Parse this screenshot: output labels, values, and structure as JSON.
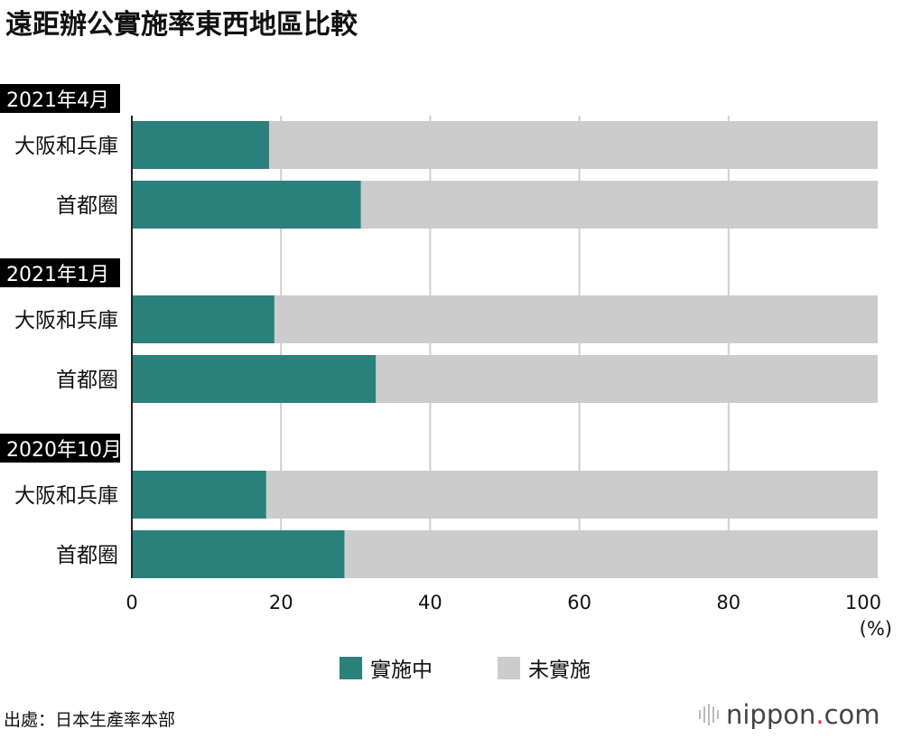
{
  "chart_data": {
    "type": "bar",
    "orientation": "horizontal",
    "stacked": true,
    "title": "遠距辦公實施率東西地區比較",
    "groups": [
      {
        "label": "2021年4月",
        "categories": [
          "大阪和兵庫",
          "首都圈"
        ],
        "implemented": [
          18.4,
          30.7
        ]
      },
      {
        "label": "2021年1月",
        "categories": [
          "大阪和兵庫",
          "首都圈"
        ],
        "implemented": [
          19.1,
          32.7
        ]
      },
      {
        "label": "2020年10月",
        "categories": [
          "大阪和兵庫",
          "首都圈"
        ],
        "implemented": [
          18.0,
          28.5
        ]
      }
    ],
    "series": [
      {
        "name": "實施中",
        "color": "#2a817c"
      },
      {
        "name": "未實施",
        "color": "#cccccc"
      }
    ],
    "xlim": [
      0,
      100
    ],
    "xticks": [
      "0",
      "20",
      "40",
      "60",
      "80",
      "100"
    ],
    "xunit": "(%)",
    "grid": true,
    "legend": "bottom-center",
    "source": "出處：日本生產率本部",
    "logo": "nippon.com"
  }
}
